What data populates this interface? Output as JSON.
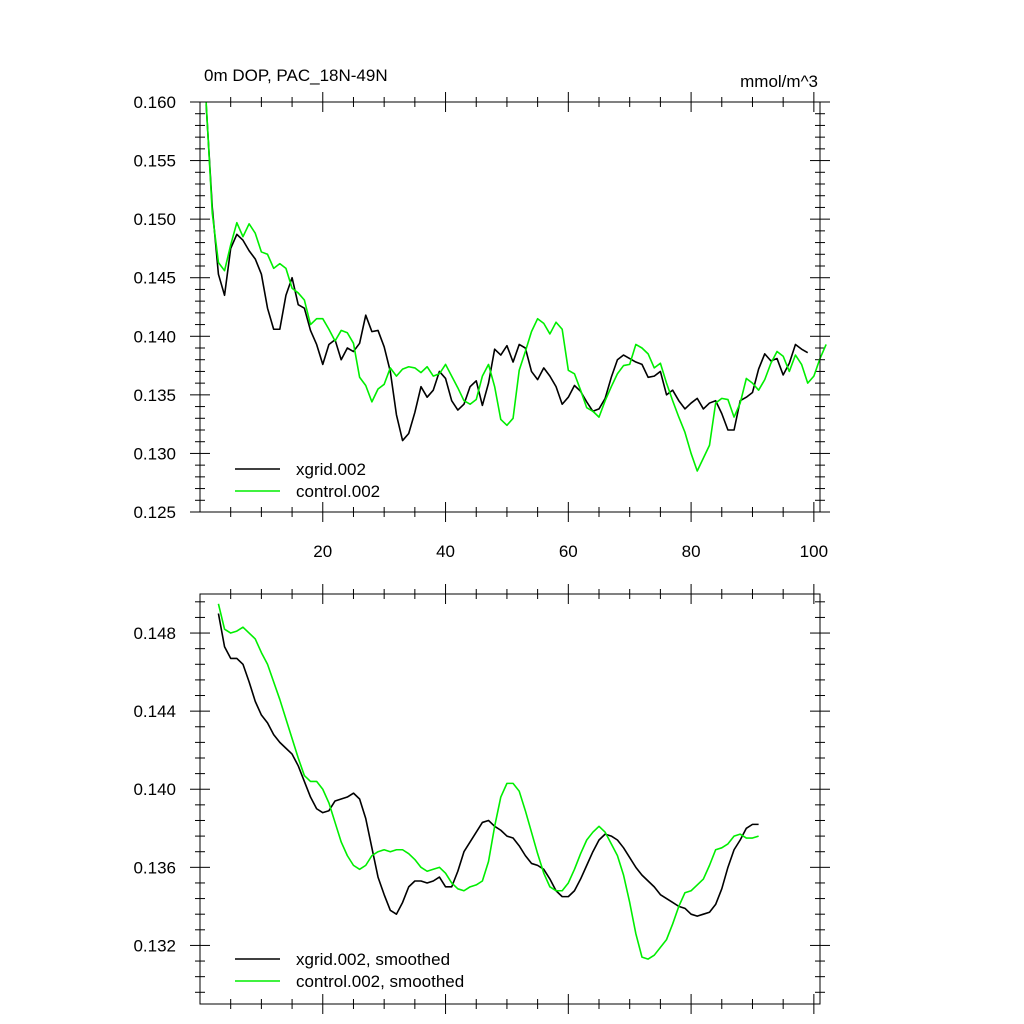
{
  "header": {
    "left_title": "0m DOP, PAC_18N-49N",
    "right_units": "mmol/m^3"
  },
  "colors": {
    "xgrid": "#000000",
    "control": "#00ee00",
    "axis": "#000000",
    "background": "#ffffff"
  },
  "chart_data": [
    {
      "type": "line",
      "title": "0m DOP, PAC_18N-49N",
      "units": "mmol/m^3",
      "xlim": [
        0,
        101
      ],
      "ylim": [
        0.125,
        0.16
      ],
      "x_tick_labels": [
        "20",
        "40",
        "60",
        "80",
        "100"
      ],
      "y_tick_labels": [
        "0.160",
        "0.155",
        "0.150",
        "0.145",
        "0.140",
        "0.135",
        "0.130",
        "0.125"
      ],
      "legend_position": "bottom-left",
      "grid": false,
      "x_start": 1,
      "series": [
        {
          "name": "xgrid.002",
          "color": "#000000",
          "values": [
            0.1598,
            0.151,
            0.1453,
            0.1435,
            0.1475,
            0.1487,
            0.1482,
            0.1473,
            0.1466,
            0.1453,
            0.1424,
            0.1406,
            0.1406,
            0.1435,
            0.145,
            0.1427,
            0.1424,
            0.1405,
            0.1393,
            0.1376,
            0.1393,
            0.1397,
            0.138,
            0.139,
            0.1387,
            0.1394,
            0.1418,
            0.1404,
            0.1405,
            0.1391,
            0.137,
            0.1333,
            0.1311,
            0.1317,
            0.1335,
            0.1357,
            0.1348,
            0.1354,
            0.137,
            0.1364,
            0.1345,
            0.1337,
            0.1342,
            0.1357,
            0.1362,
            0.1341,
            0.136,
            0.1389,
            0.1384,
            0.1392,
            0.1378,
            0.1393,
            0.139,
            0.137,
            0.1363,
            0.1373,
            0.1366,
            0.1357,
            0.1342,
            0.1348,
            0.1358,
            0.1353,
            0.1344,
            0.1336,
            0.1338,
            0.1347,
            0.1365,
            0.138,
            0.1384,
            0.1381,
            0.1378,
            0.1376,
            0.1365,
            0.1366,
            0.137,
            0.135,
            0.1354,
            0.1345,
            0.1338,
            0.1343,
            0.1347,
            0.1338,
            0.1343,
            0.1345,
            0.1334,
            0.132,
            0.132,
            0.1345,
            0.1348,
            0.1352,
            0.1372,
            0.1385,
            0.1379,
            0.1381,
            0.1367,
            0.1377,
            0.1393,
            0.1389,
            0.1386
          ]
        },
        {
          "name": "control.002",
          "color": "#00ee00",
          "values": [
            0.16,
            0.1505,
            0.1463,
            0.1456,
            0.1478,
            0.1497,
            0.1485,
            0.1496,
            0.1488,
            0.1472,
            0.147,
            0.1458,
            0.1462,
            0.1458,
            0.1441,
            0.1437,
            0.1431,
            0.141,
            0.1415,
            0.1415,
            0.1406,
            0.1396,
            0.1405,
            0.1403,
            0.1394,
            0.1365,
            0.1358,
            0.1344,
            0.1355,
            0.1359,
            0.1373,
            0.1366,
            0.1372,
            0.1374,
            0.1373,
            0.1369,
            0.1374,
            0.1366,
            0.1368,
            0.1376,
            0.1366,
            0.1356,
            0.1345,
            0.1342,
            0.1346,
            0.1366,
            0.1376,
            0.1357,
            0.1329,
            0.1324,
            0.133,
            0.1371,
            0.1387,
            0.1404,
            0.1415,
            0.1411,
            0.1402,
            0.1412,
            0.1406,
            0.1371,
            0.1368,
            0.1354,
            0.1339,
            0.1336,
            0.1331,
            0.1345,
            0.1357,
            0.1368,
            0.1375,
            0.1376,
            0.1393,
            0.139,
            0.1385,
            0.1373,
            0.1377,
            0.136,
            0.1345,
            0.1331,
            0.1318,
            0.13,
            0.1285,
            0.1296,
            0.1307,
            0.1343,
            0.1347,
            0.1346,
            0.1331,
            0.1343,
            0.1364,
            0.136,
            0.1354,
            0.1363,
            0.1377,
            0.1387,
            0.1383,
            0.137,
            0.1384,
            0.1376,
            0.136,
            0.1366,
            0.1381,
            0.1393
          ]
        }
      ]
    },
    {
      "type": "line",
      "xlim": [
        0,
        101
      ],
      "ylim": [
        0.129,
        0.15
      ],
      "y_tick_labels": [
        "0.148",
        "0.144",
        "0.140",
        "0.136",
        "0.132"
      ],
      "legend_position": "bottom-left",
      "grid": false,
      "x_start": 3,
      "series": [
        {
          "name": "xgrid.002, smoothed",
          "color": "#000000",
          "values": [
            0.149,
            0.1473,
            0.1467,
            0.1467,
            0.1464,
            0.1455,
            0.1445,
            0.1438,
            0.1434,
            0.1428,
            0.1424,
            0.1421,
            0.1418,
            0.1412,
            0.1404,
            0.1396,
            0.139,
            0.1388,
            0.1389,
            0.1394,
            0.1395,
            0.1396,
            0.1398,
            0.1395,
            0.1385,
            0.137,
            0.1355,
            0.1346,
            0.1338,
            0.1336,
            0.1342,
            0.135,
            0.1353,
            0.1353,
            0.1352,
            0.1353,
            0.1355,
            0.135,
            0.135,
            0.1358,
            0.1368,
            0.1373,
            0.1378,
            0.1383,
            0.1384,
            0.1381,
            0.1379,
            0.1376,
            0.1375,
            0.1371,
            0.1366,
            0.1362,
            0.1361,
            0.1359,
            0.1354,
            0.1348,
            0.1345,
            0.1345,
            0.1348,
            0.1354,
            0.1361,
            0.1368,
            0.1374,
            0.1377,
            0.1376,
            0.1374,
            0.137,
            0.1365,
            0.136,
            0.1356,
            0.1353,
            0.135,
            0.1346,
            0.1344,
            0.1342,
            0.134,
            0.1339,
            0.1336,
            0.1335,
            0.1336,
            0.1337,
            0.1341,
            0.1349,
            0.136,
            0.1369,
            0.1374,
            0.138,
            0.1382,
            0.1382
          ]
        },
        {
          "name": "control.002, smoothed",
          "color": "#00ee00",
          "values": [
            0.1495,
            0.1482,
            0.148,
            0.1481,
            0.1483,
            0.148,
            0.1477,
            0.147,
            0.1464,
            0.1455,
            0.1446,
            0.1436,
            0.1426,
            0.1416,
            0.1407,
            0.1404,
            0.1404,
            0.14,
            0.1393,
            0.1383,
            0.1373,
            0.1366,
            0.1361,
            0.1359,
            0.1361,
            0.1366,
            0.1368,
            0.1369,
            0.1368,
            0.1369,
            0.1369,
            0.1367,
            0.1364,
            0.136,
            0.1358,
            0.1359,
            0.136,
            0.1357,
            0.1352,
            0.1349,
            0.1348,
            0.135,
            0.1351,
            0.1353,
            0.1363,
            0.1381,
            0.1396,
            0.1403,
            0.1403,
            0.1399,
            0.1389,
            0.1378,
            0.1367,
            0.1357,
            0.135,
            0.1348,
            0.1348,
            0.1352,
            0.1359,
            0.1367,
            0.1374,
            0.1378,
            0.1381,
            0.1378,
            0.1372,
            0.1366,
            0.1356,
            0.1342,
            0.1326,
            0.1314,
            0.1313,
            0.1315,
            0.1319,
            0.1323,
            0.1331,
            0.134,
            0.1347,
            0.1348,
            0.1351,
            0.1354,
            0.1361,
            0.1369,
            0.137,
            0.1372,
            0.1376,
            0.1377,
            0.1375,
            0.1375,
            0.1376
          ]
        }
      ]
    }
  ]
}
